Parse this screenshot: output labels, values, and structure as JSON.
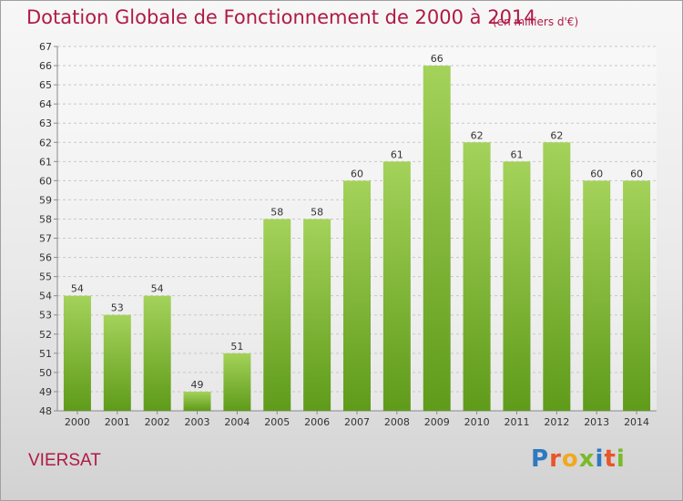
{
  "header": {
    "title": "Dotation Globale de Fonctionnement de 2000 à 2014",
    "unit": "(en milliers d'€)"
  },
  "footer": {
    "place": "VIERSAT",
    "logo_text": "Proxiti",
    "logo_colors": [
      "#2e79c0",
      "#e8562a",
      "#f2a81d",
      "#7ab929",
      "#2e79c0",
      "#e8562a",
      "#7ab929"
    ]
  },
  "colors": {
    "bar_top": "#a4d25a",
    "bar_bottom": "#5f9b1a",
    "text": "#333333",
    "grid": "#c8c8c8",
    "axis": "#8a8a8a"
  },
  "chart_data": {
    "type": "bar",
    "categories": [
      "2000",
      "2001",
      "2002",
      "2003",
      "2004",
      "2005",
      "2006",
      "2007",
      "2008",
      "2009",
      "2010",
      "2011",
      "2012",
      "2013",
      "2014"
    ],
    "values": [
      54,
      53,
      54,
      49,
      51,
      58,
      58,
      60,
      61,
      66,
      62,
      61,
      62,
      60,
      60
    ],
    "ylim": [
      48,
      67
    ],
    "yticks": [
      48,
      49,
      50,
      51,
      52,
      53,
      54,
      55,
      56,
      57,
      58,
      59,
      60,
      61,
      62,
      63,
      64,
      65,
      66,
      67
    ],
    "grid": true,
    "data_labels": true
  }
}
